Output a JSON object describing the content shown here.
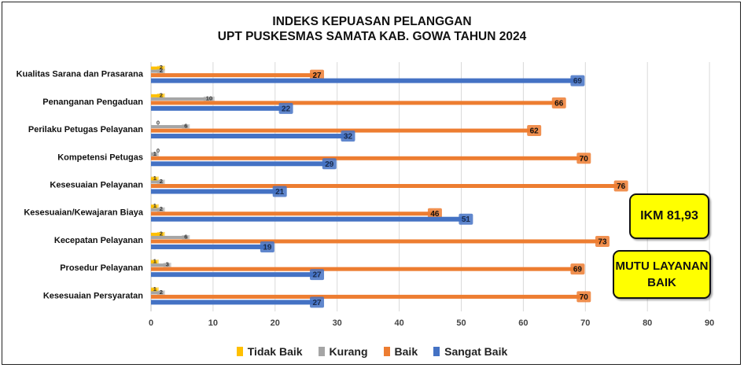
{
  "title": [
    "INDEKS KEPUASAN PELANGGAN",
    "UPT PUSKESMAS SAMATA KAB. GOWA TAHUN 2024"
  ],
  "ikm_label": "IKM 81,93",
  "mutu_label": [
    "MUTU LAYANAN",
    "BAIK"
  ],
  "chart_data": {
    "type": "bar",
    "orientation": "horizontal",
    "title": "INDEKS KEPUASAN PELANGGAN UPT PUSKESMAS SAMATA KAB. GOWA TAHUN 2024",
    "categories": [
      "Kualitas Sarana dan Prasarana",
      "Penanganan Pengaduan",
      "Perilaku Petugas Pelayanan",
      "Kompetensi Petugas",
      "Kesesuaian Pelayanan",
      "Kesesuaian/Kewajaran Biaya",
      "Kecepatan Pelayanan",
      "Prosedur Pelayanan",
      "Kesesuaian Persyaratan"
    ],
    "series": [
      {
        "name": "Tidak Baik",
        "color": "#FFC000",
        "values": [
          2,
          2,
          0,
          0,
          1,
          1,
          2,
          1,
          1
        ]
      },
      {
        "name": "Kurang",
        "color": "#A5A5A5",
        "values": [
          2,
          10,
          6,
          1,
          2,
          2,
          6,
          3,
          2
        ]
      },
      {
        "name": "Baik",
        "color": "#ED7D31",
        "values": [
          27,
          66,
          62,
          70,
          76,
          46,
          73,
          69,
          70
        ]
      },
      {
        "name": "Sangat Baik",
        "color": "#4472C4",
        "values": [
          69,
          22,
          32,
          29,
          21,
          51,
          19,
          27,
          27
        ]
      }
    ],
    "xlim": [
      0,
      90
    ],
    "xticks": [
      "0",
      "10",
      "20",
      "30",
      "40",
      "50",
      "60",
      "70",
      "80",
      "90"
    ],
    "grid": true,
    "legend": "bottom"
  }
}
